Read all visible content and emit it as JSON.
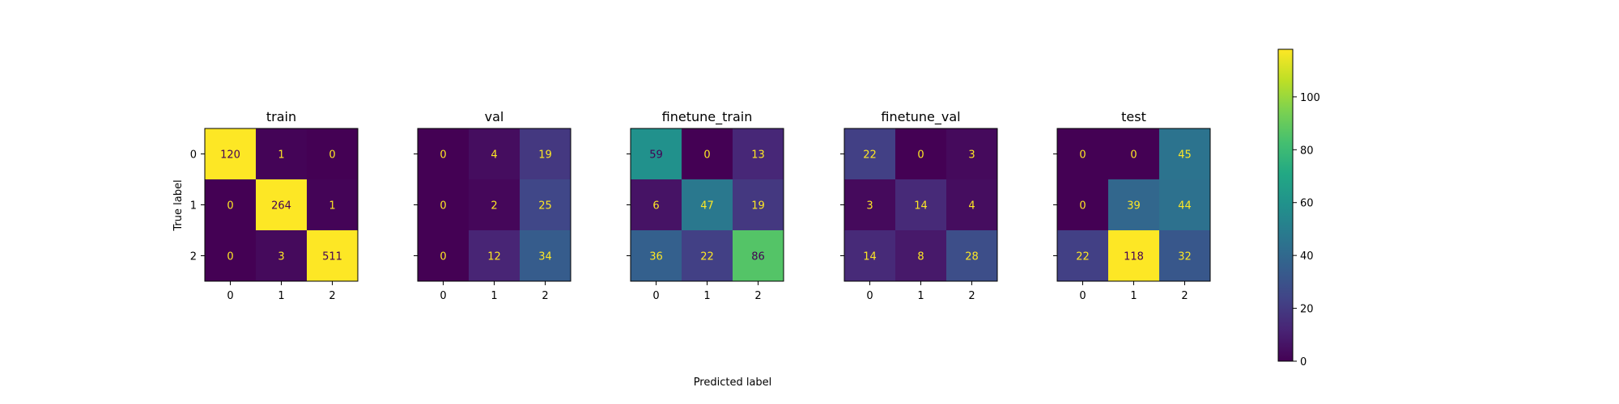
{
  "chart_data": {
    "type": "heatmap",
    "xlabel": "Predicted label",
    "ylabel": "True label",
    "classes": [
      "0",
      "1",
      "2"
    ],
    "colormap": "viridis",
    "colorbar": {
      "range": [
        0,
        118
      ],
      "ticks": [
        0,
        20,
        40,
        60,
        80,
        100
      ]
    },
    "panels": [
      {
        "title": "train",
        "values": [
          [
            120,
            1,
            0
          ],
          [
            0,
            264,
            1
          ],
          [
            0,
            3,
            511
          ]
        ]
      },
      {
        "title": "val",
        "values": [
          [
            0,
            4,
            19
          ],
          [
            0,
            2,
            25
          ],
          [
            0,
            12,
            34
          ]
        ]
      },
      {
        "title": "finetune_train",
        "values": [
          [
            59,
            0,
            13
          ],
          [
            6,
            47,
            19
          ],
          [
            36,
            22,
            86
          ]
        ]
      },
      {
        "title": "finetune_val",
        "values": [
          [
            22,
            0,
            3
          ],
          [
            3,
            14,
            4
          ],
          [
            14,
            8,
            28
          ]
        ]
      },
      {
        "title": "test",
        "values": [
          [
            0,
            0,
            45
          ],
          [
            0,
            39,
            44
          ],
          [
            22,
            118,
            32
          ]
        ]
      }
    ]
  }
}
